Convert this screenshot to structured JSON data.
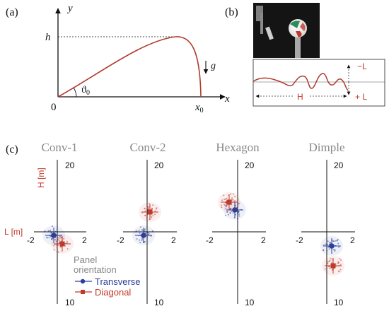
{
  "panel_a": {
    "label": "(a)",
    "axis_y": "y",
    "axis_x": "x",
    "h": "h",
    "g": "g",
    "origin": "0",
    "theta": "ϑ",
    "theta_sub": "0",
    "x0": "x",
    "x0_sub": "0",
    "colors": {
      "trajectory": "#b03a2e",
      "axis": "#111111"
    }
  },
  "panel_b": {
    "label": "(b)",
    "minus_L": "−L",
    "plus_L": "+ L",
    "H": "H",
    "colors": {
      "label": "#c0392b",
      "path": "#b03a2e"
    }
  },
  "panel_c": {
    "label": "(c)",
    "plot_titles": [
      "Conv-1",
      "Conv-2",
      "Hexagon",
      "Dimple"
    ],
    "tick_top": "20",
    "tick_bottom": "10",
    "tick_left": "-2",
    "tick_right": "2",
    "y_axis_label": "H [m]",
    "x_axis_label": "L [m]",
    "legend": {
      "title_line1": "Panel",
      "title_line2": "orientation",
      "items": [
        {
          "label": "Transverse",
          "color": "#2c3e9a"
        },
        {
          "label": "Diagonal",
          "color": "#c0392b"
        }
      ]
    },
    "colors": {
      "transverse": "#2c3e9a",
      "diagonal": "#c0392b",
      "title": "#888888"
    }
  }
}
